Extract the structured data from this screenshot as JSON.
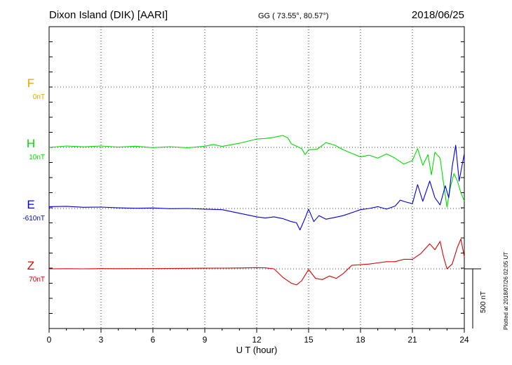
{
  "header": {
    "station": "Dixon Island (DIK)  [AARI]",
    "coords": "GG ( 73.55°,  80.57°)",
    "date": "2018/06/25"
  },
  "footer": {
    "xlabel": "U T (hour)",
    "plotted_note": "Plotted at 2018/07/26 02:05 UT",
    "scale_label": "500 nT"
  },
  "colors": {
    "F": "#f0a000",
    "H": "#00dd00",
    "E": "#0000dd",
    "Z": "#dd0000"
  },
  "chart_data": {
    "type": "line",
    "x_unit": "hour (UT)",
    "xlim": [
      0,
      24
    ],
    "x_ticks": [
      "0",
      "3",
      "6",
      "9",
      "12",
      "15",
      "18",
      "21",
      "24"
    ],
    "grid": true,
    "scale_bar_nT": 500,
    "series": [
      {
        "name": "F",
        "baseline_label": "0nT",
        "points": []
      },
      {
        "name": "H",
        "baseline_label": "10nT",
        "points": [
          [
            0,
            0
          ],
          [
            1,
            12
          ],
          [
            2,
            5
          ],
          [
            3,
            12
          ],
          [
            4,
            3
          ],
          [
            5,
            10
          ],
          [
            6,
            -2
          ],
          [
            7,
            6
          ],
          [
            8,
            -3
          ],
          [
            9,
            10
          ],
          [
            9.5,
            25
          ],
          [
            10,
            8
          ],
          [
            11,
            35
          ],
          [
            12,
            70
          ],
          [
            12.5,
            75
          ],
          [
            13,
            85
          ],
          [
            13.5,
            100
          ],
          [
            13.8,
            80
          ],
          [
            14,
            30
          ],
          [
            14.3,
            10
          ],
          [
            14.6,
            -10
          ],
          [
            14.8,
            -60
          ],
          [
            15,
            -20
          ],
          [
            15.5,
            -15
          ],
          [
            16,
            40
          ],
          [
            16.5,
            20
          ],
          [
            17,
            -20
          ],
          [
            17.5,
            -50
          ],
          [
            18,
            -80
          ],
          [
            18.5,
            -65
          ],
          [
            19,
            -90
          ],
          [
            19.5,
            -55
          ],
          [
            20,
            -90
          ],
          [
            20.5,
            -140
          ],
          [
            21,
            -110
          ],
          [
            21.3,
            -10
          ],
          [
            21.6,
            -150
          ],
          [
            21.9,
            -60
          ],
          [
            22.1,
            -230
          ],
          [
            22.3,
            -40
          ],
          [
            22.6,
            -90
          ],
          [
            22.8,
            -300
          ],
          [
            23,
            -500
          ],
          [
            23.2,
            -330
          ],
          [
            23.4,
            -220
          ],
          [
            23.6,
            -280
          ],
          [
            23.8,
            -380
          ],
          [
            24,
            -450
          ]
        ]
      },
      {
        "name": "E",
        "baseline_label": "-610nT",
        "points": [
          [
            0,
            15
          ],
          [
            1,
            18
          ],
          [
            2,
            10
          ],
          [
            3,
            12
          ],
          [
            4,
            5
          ],
          [
            5,
            2
          ],
          [
            6,
            4
          ],
          [
            7,
            -2
          ],
          [
            8,
            0
          ],
          [
            9,
            -5
          ],
          [
            10,
            -10
          ],
          [
            11,
            -40
          ],
          [
            12,
            -70
          ],
          [
            12.5,
            -80
          ],
          [
            13,
            -70
          ],
          [
            13.5,
            -85
          ],
          [
            14,
            -110
          ],
          [
            14.3,
            -120
          ],
          [
            14.5,
            -180
          ],
          [
            14.8,
            -80
          ],
          [
            15,
            -5
          ],
          [
            15.3,
            -110
          ],
          [
            15.6,
            -60
          ],
          [
            16,
            -90
          ],
          [
            16.5,
            -75
          ],
          [
            17,
            -60
          ],
          [
            18,
            -10
          ],
          [
            18.5,
            0
          ],
          [
            19,
            15
          ],
          [
            19.5,
            -5
          ],
          [
            20,
            20
          ],
          [
            20.3,
            70
          ],
          [
            20.6,
            55
          ],
          [
            21,
            40
          ],
          [
            21.3,
            200
          ],
          [
            21.6,
            60
          ],
          [
            22,
            230
          ],
          [
            22.3,
            90
          ],
          [
            22.6,
            30
          ],
          [
            22.9,
            190
          ],
          [
            23.1,
            90
          ],
          [
            23.3,
            350
          ],
          [
            23.5,
            530
          ],
          [
            23.7,
            230
          ],
          [
            24,
            460
          ]
        ]
      },
      {
        "name": "Z",
        "baseline_label": "70nT",
        "points": [
          [
            0,
            0
          ],
          [
            1,
            1
          ],
          [
            2,
            0
          ],
          [
            3,
            2
          ],
          [
            4,
            1
          ],
          [
            5,
            2
          ],
          [
            6,
            2
          ],
          [
            7,
            3
          ],
          [
            8,
            4
          ],
          [
            9,
            5
          ],
          [
            10,
            6
          ],
          [
            11,
            7
          ],
          [
            12,
            10
          ],
          [
            12.5,
            8
          ],
          [
            13,
            0
          ],
          [
            13.5,
            -70
          ],
          [
            14,
            -120
          ],
          [
            14.3,
            -135
          ],
          [
            14.6,
            -100
          ],
          [
            15,
            -5
          ],
          [
            15.4,
            -80
          ],
          [
            15.8,
            -90
          ],
          [
            16.2,
            -60
          ],
          [
            16.6,
            -80
          ],
          [
            17,
            -40
          ],
          [
            17.5,
            30
          ],
          [
            18,
            35
          ],
          [
            18.5,
            40
          ],
          [
            19,
            50
          ],
          [
            19.5,
            60
          ],
          [
            20,
            60
          ],
          [
            20.5,
            80
          ],
          [
            21,
            80
          ],
          [
            21.5,
            130
          ],
          [
            22,
            210
          ],
          [
            22.3,
            160
          ],
          [
            22.6,
            230
          ],
          [
            22.8,
            100
          ],
          [
            23,
            0
          ],
          [
            23.3,
            40
          ],
          [
            23.6,
            180
          ],
          [
            23.8,
            250
          ],
          [
            24,
            100
          ]
        ]
      }
    ]
  }
}
